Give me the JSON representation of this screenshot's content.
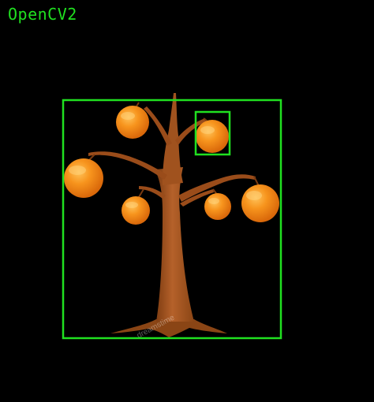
{
  "window": {
    "title": "OpenCV2"
  },
  "watermark": {
    "text": "dreamstime"
  },
  "colors": {
    "background": "#000000",
    "detection_box": "#20e020",
    "trunk": "#a0521e",
    "trunk_dark": "#7a3a10",
    "orange_fill": "#f5901a",
    "orange_highlight": "#ffd27a",
    "orange_shadow": "#d86a0a"
  },
  "detections": {
    "tree_box_label": "",
    "fruit_box_label": ""
  },
  "icons": {
    "oranges": [
      "orange-icon"
    ]
  }
}
